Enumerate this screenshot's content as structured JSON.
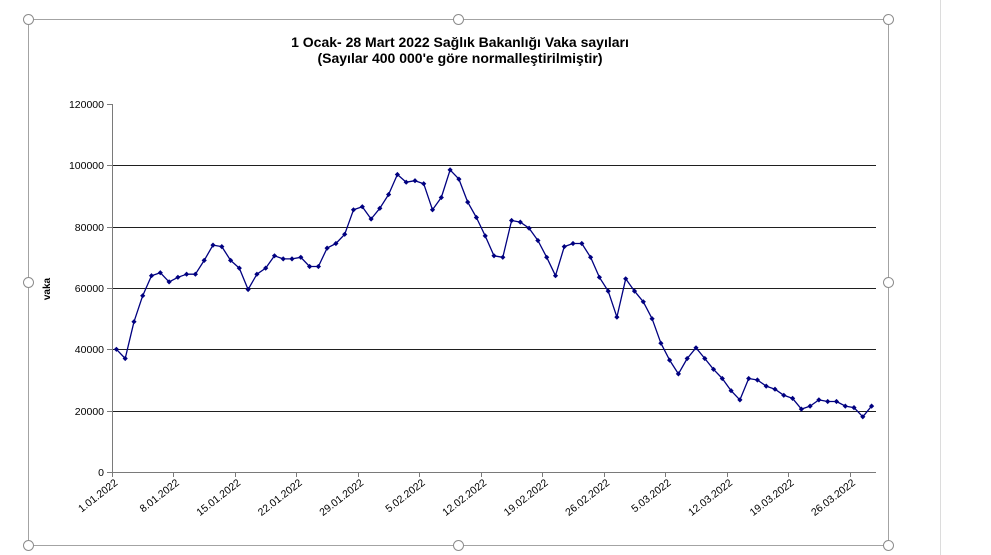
{
  "colors": {
    "gridline": "#1f1f1f"
  },
  "chart_data": {
    "type": "line",
    "title": "1 Ocak- 28 Mart 2022 Sağlık Bakanlığı Vaka sayıları",
    "subtitle": "(Sayılar 400 000'e göre normalleştirilmiştir)",
    "ylabel": "vaka",
    "ylim": [
      0,
      120000
    ],
    "yticks": [
      0,
      20000,
      40000,
      60000,
      80000,
      100000,
      120000
    ],
    "grid": true,
    "legend": "none",
    "x_tick_labels": [
      "1.01.2022",
      "8.01.2022",
      "15.01.2022",
      "22.01.2022",
      "29.01.2022",
      "5.02.2022",
      "12.02.2022",
      "19.02.2022",
      "26.02.2022",
      "5.03.2022",
      "12.03.2022",
      "19.03.2022",
      "26.03.2022"
    ],
    "x": [
      "1.01.2022",
      "2.01.2022",
      "3.01.2022",
      "4.01.2022",
      "5.01.2022",
      "6.01.2022",
      "7.01.2022",
      "8.01.2022",
      "9.01.2022",
      "10.01.2022",
      "11.01.2022",
      "12.01.2022",
      "13.01.2022",
      "14.01.2022",
      "15.01.2022",
      "16.01.2022",
      "17.01.2022",
      "18.01.2022",
      "19.01.2022",
      "20.01.2022",
      "21.01.2022",
      "22.01.2022",
      "23.01.2022",
      "24.01.2022",
      "25.01.2022",
      "26.01.2022",
      "27.01.2022",
      "28.01.2022",
      "29.01.2022",
      "30.01.2022",
      "31.01.2022",
      "1.02.2022",
      "2.02.2022",
      "3.02.2022",
      "4.02.2022",
      "5.02.2022",
      "6.02.2022",
      "7.02.2022",
      "8.02.2022",
      "9.02.2022",
      "10.02.2022",
      "11.02.2022",
      "12.02.2022",
      "13.02.2022",
      "14.02.2022",
      "15.02.2022",
      "16.02.2022",
      "17.02.2022",
      "18.02.2022",
      "19.02.2022",
      "20.02.2022",
      "21.02.2022",
      "22.02.2022",
      "23.02.2022",
      "24.02.2022",
      "25.02.2022",
      "26.02.2022",
      "27.02.2022",
      "28.02.2022",
      "1.03.2022",
      "2.03.2022",
      "3.03.2022",
      "4.03.2022",
      "5.03.2022",
      "6.03.2022",
      "7.03.2022",
      "8.03.2022",
      "9.03.2022",
      "10.03.2022",
      "11.03.2022",
      "12.03.2022",
      "13.03.2022",
      "14.03.2022",
      "15.03.2022",
      "16.03.2022",
      "17.03.2022",
      "18.03.2022",
      "19.03.2022",
      "20.03.2022",
      "21.03.2022",
      "22.03.2022",
      "23.03.2022",
      "24.03.2022",
      "25.03.2022",
      "26.03.2022",
      "27.03.2022",
      "28.03.2022"
    ],
    "series": [
      {
        "color": "#000080",
        "marker": "diamond",
        "values": [
          40000,
          37000,
          49000,
          57500,
          64000,
          65000,
          62000,
          63500,
          64500,
          64500,
          69000,
          74000,
          73500,
          69000,
          66500,
          59500,
          64500,
          66500,
          70500,
          69500,
          69500,
          70000,
          67000,
          67000,
          73000,
          74500,
          77500,
          85500,
          86500,
          82500,
          86000,
          90500,
          97000,
          94500,
          95000,
          94000,
          85500,
          89500,
          98500,
          95500,
          88000,
          83000,
          77000,
          70500,
          70000,
          82000,
          81500,
          79500,
          75500,
          70000,
          64000,
          73500,
          74500,
          74500,
          70000,
          63500,
          59000,
          50500,
          63000,
          59000,
          55500,
          50000,
          42000,
          36500,
          32000,
          37000,
          40500,
          37000,
          33500,
          30500,
          26500,
          23500,
          30500,
          30000,
          28000,
          27000,
          25000,
          24000,
          20500,
          21500,
          23500,
          23000,
          23000,
          21500,
          21000,
          18000,
          21500
        ]
      }
    ]
  }
}
